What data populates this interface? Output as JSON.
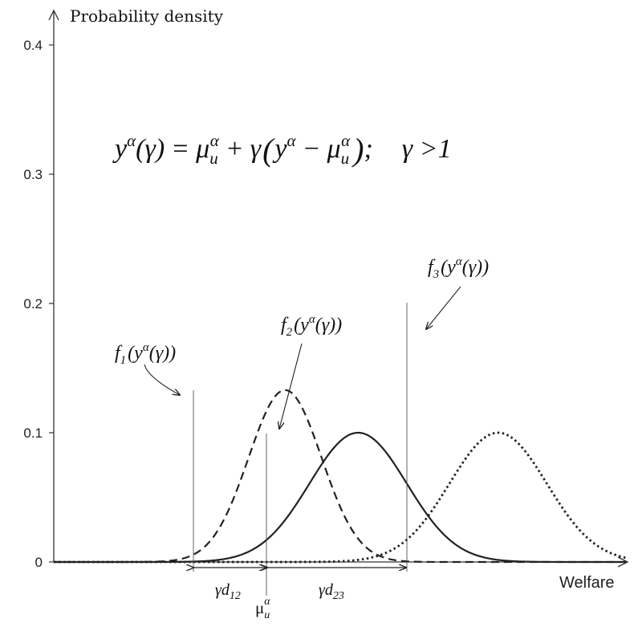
{
  "chart_data": {
    "type": "line",
    "title": "",
    "ylabel": "Probability density",
    "xlabel": "Welfare",
    "ylim": [
      0,
      0.4
    ],
    "yticks": [
      0,
      0.1,
      0.2,
      0.3,
      0.4
    ],
    "ytick_labels": [
      "0",
      "0.1",
      "0.2",
      "0.3",
      "0.4"
    ],
    "grid": false,
    "equation": {
      "lhs": "y",
      "lhs_sup": "α",
      "lhs_arg": "(γ)",
      "equals": "=",
      "mu": "μ",
      "mu_sub": "u",
      "mu_sup": "α",
      "plus": "+",
      "gamma": "γ",
      "y": "y",
      "y_sup": "α",
      "minus": "−",
      "semicolon": ";",
      "condition": "γ >1"
    },
    "series": [
      {
        "label_f": "f",
        "label_sub": "1",
        "label_arg": "(y",
        "label_arg_sup": "α",
        "label_arg_tail": "(γ))",
        "style": "dashed",
        "mean": 2.5,
        "sd": 0.3,
        "peak": 0.133
      },
      {
        "label_f": "f",
        "label_sub": "2",
        "label_arg": "(y",
        "label_arg_sup": "α",
        "label_arg_tail": "(γ))",
        "style": "solid",
        "mean": 3.1,
        "sd": 0.4,
        "peak": 0.1
      },
      {
        "label_f": "f",
        "label_sub": "3",
        "label_arg": "(y",
        "label_arg_sup": "α",
        "label_arg_tail": "(γ))",
        "style": "dotted",
        "mean": 4.25,
        "sd": 0.4,
        "peak": 0.1
      }
    ],
    "x_range": [
      0.6,
      5.3
    ],
    "annotations": {
      "d12": {
        "gamma": "γ",
        "d": "d",
        "sub": "12"
      },
      "d23": {
        "gamma": "γ",
        "d": "d",
        "sub": "23"
      },
      "mu_u": {
        "mu": "μ",
        "sub": "u",
        "sup": "α"
      }
    }
  }
}
